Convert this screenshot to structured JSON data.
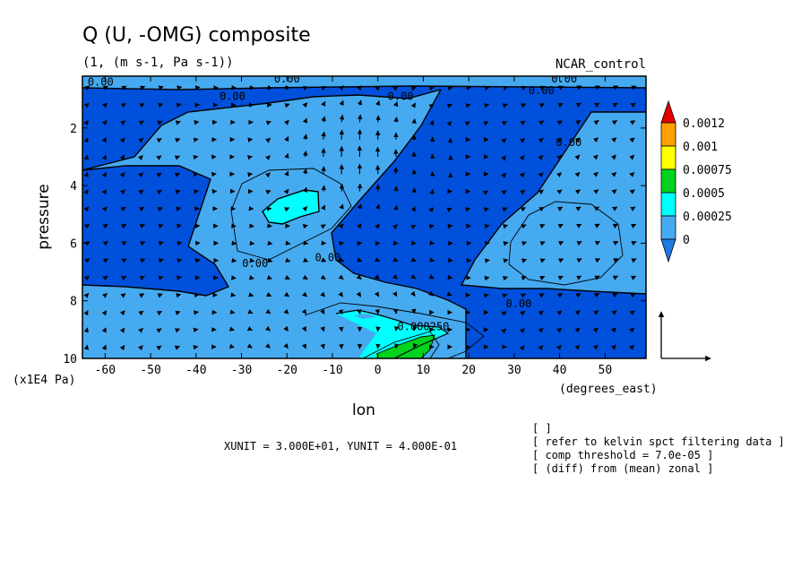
{
  "title": "Q (U, -OMG) composite",
  "subtitle": "(1, (m s-1, Pa s-1))",
  "run_label": "NCAR_control",
  "units_x": "(degrees_east)",
  "units_y": "(x1E4 Pa)",
  "footer": {
    "unit_text": "XUNIT = 3.000E+01, YUNIT = 4.000E-01",
    "notes": [
      "[  ]",
      "[ refer to kelvin spct filtering data ]",
      "[ comp threshold = 7.0e-05 ]",
      "[ (diff) from (mean) zonal ]"
    ]
  },
  "colors": {
    "level_below_0": "#1E78E6",
    "level_0": "#0050DC",
    "level_1": "#46AAF0",
    "level_2": "#00FFFF",
    "level_3": "#00D21E",
    "level_4": "#FFFF00",
    "level_5": "#FFA000",
    "level_6": "#E60000"
  },
  "chart_data": {
    "type": "contour",
    "title": "Q (U, -OMG) composite",
    "subtitle": "(1, (m s-1, Pa s-1))",
    "xlabel": "lon",
    "ylabel": "pressure",
    "xlim": [
      -65,
      59
    ],
    "ylim": [
      10,
      0.2
    ],
    "xticks": [
      -60,
      -50,
      -40,
      -30,
      -20,
      -10,
      0,
      10,
      20,
      30,
      40,
      50
    ],
    "yticks": [
      2,
      4,
      6,
      8,
      10
    ],
    "legend": {
      "placement": "right",
      "levels": [
        "0",
        "0.00025",
        "0.0005",
        "0.00075",
        "0.001",
        "0.0012"
      ]
    },
    "contour_labels": [
      {
        "text": "0.00",
        "x": -61,
        "y": 0.4
      },
      {
        "text": "0.00",
        "x": -32,
        "y": 0.9
      },
      {
        "text": "0.00",
        "x": -20,
        "y": 0.3
      },
      {
        "text": "0.00",
        "x": 5,
        "y": 0.9
      },
      {
        "text": "0.00",
        "x": 36,
        "y": 0.7
      },
      {
        "text": "0.00",
        "x": 41,
        "y": 0.3
      },
      {
        "text": "0.00",
        "x": 42,
        "y": 2.5
      },
      {
        "text": "0.00",
        "x": -27,
        "y": 6.7
      },
      {
        "text": "0.00",
        "x": -11,
        "y": 6.5
      },
      {
        "text": "0.00",
        "x": 31,
        "y": 8.1
      },
      {
        "text": "0.000250",
        "x": 10,
        "y": 8.9
      }
    ],
    "vector_field": {
      "components": [
        "U",
        "-OMG"
      ],
      "xunit": 30,
      "yunit": 0.4,
      "reference_vector": {
        "u": 30,
        "omega": 0.4
      }
    }
  }
}
